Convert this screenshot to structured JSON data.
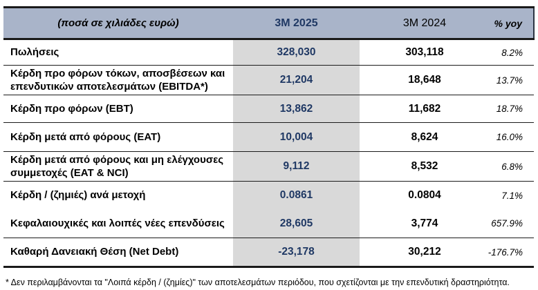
{
  "colors": {
    "header_bg": "#a9b4c9",
    "accent_navy": "#1f3864",
    "highlight_column_bg": "#d9d9d9",
    "border": "#1a1a1a"
  },
  "table": {
    "header": {
      "units_label": "(ποσά σε χιλιάδες ευρώ)",
      "col_2025": "3M 2025",
      "col_2024": "3M 2024",
      "col_yoy": "% yoy"
    },
    "rows": [
      {
        "label": "Πωλήσεις",
        "v2025": "328,030",
        "v2024": "303,118",
        "yoy": "8.2%"
      },
      {
        "label": "Κέρδη προ φόρων τόκων, αποσβέσεων και επενδυτικών αποτελεσμάτων (EBITDA*)",
        "v2025": "21,204",
        "v2024": "18,648",
        "yoy": "13.7%"
      },
      {
        "label": "Κέρδη προ φόρων (EBT)",
        "v2025": "13,862",
        "v2024": "11,682",
        "yoy": "18.7%"
      },
      {
        "label": "Κέρδη μετά από φόρους (EAT)",
        "v2025": "10,004",
        "v2024": "8,624",
        "yoy": "16.0%"
      },
      {
        "label": "Κέρδη μετά από φόρους και μη ελέγχουσες συμμετοχές (EAT & NCI)",
        "v2025": "9,112",
        "v2024": "8,532",
        "yoy": "6.8%"
      },
      {
        "label": "Κέρδη / (ζημιές) ανά μετοχή",
        "v2025": "0.0861",
        "v2024": "0.0804",
        "yoy": "7.1%"
      },
      {
        "label": "Κεφαλαιουχικές και λοιπές νέες επενδύσεις",
        "v2025": "28,605",
        "v2024": "3,774",
        "yoy": "657.9%"
      },
      {
        "label": "Καθαρή Δανειακή Θέση (Net Debt)",
        "v2025": "-23,178",
        "v2024": "30,212",
        "yoy": "-176.7%"
      }
    ],
    "footnote": "* Δεν περιλαμβάνονται τα \"Λοιπά κέρδη / (ζημίες)\" των αποτελεσμάτων περιόδου, που σχετίζονται με την επενδυτική δραστηριότητα."
  }
}
